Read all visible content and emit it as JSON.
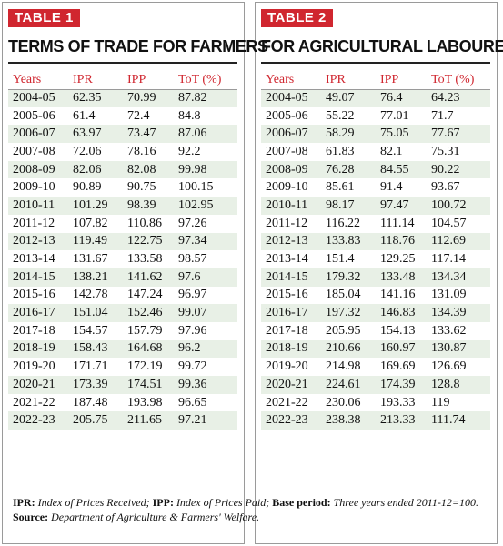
{
  "table1": {
    "tag": "TABLE 1",
    "title": "TERMS OF TRADE FOR FARMERS",
    "headers": [
      "Years",
      "IPR",
      "IPP",
      "ToT (%)"
    ],
    "rows": [
      [
        "2004-05",
        "62.35",
        "70.99",
        "87.82"
      ],
      [
        "2005-06",
        "61.4",
        "72.4",
        "84.8"
      ],
      [
        "2006-07",
        "63.97",
        "73.47",
        "87.06"
      ],
      [
        "2007-08",
        "72.06",
        "78.16",
        "92.2"
      ],
      [
        "2008-09",
        "82.06",
        "82.08",
        "99.98"
      ],
      [
        "2009-10",
        "90.89",
        "90.75",
        "100.15"
      ],
      [
        "2010-11",
        "101.29",
        "98.39",
        "102.95"
      ],
      [
        "2011-12",
        "107.82",
        "110.86",
        "97.26"
      ],
      [
        "2012-13",
        "119.49",
        "122.75",
        "97.34"
      ],
      [
        "2013-14",
        "131.67",
        "133.58",
        "98.57"
      ],
      [
        "2014-15",
        "138.21",
        "141.62",
        "97.6"
      ],
      [
        "2015-16",
        "142.78",
        "147.24",
        "96.97"
      ],
      [
        "2016-17",
        "151.04",
        "152.46",
        "99.07"
      ],
      [
        "2017-18",
        "154.57",
        "157.79",
        "97.96"
      ],
      [
        "2018-19",
        "158.43",
        "164.68",
        "96.2"
      ],
      [
        "2019-20",
        "171.71",
        "172.19",
        "99.72"
      ],
      [
        "2020-21",
        "173.39",
        "174.51",
        "99.36"
      ],
      [
        "2021-22",
        "187.48",
        "193.98",
        "96.65"
      ],
      [
        "2022-23",
        "205.75",
        "211.65",
        "97.21"
      ]
    ]
  },
  "table2": {
    "tag": "TABLE 2",
    "title": "FOR AGRICULTURAL LABOURERS",
    "headers": [
      "Years",
      "IPR",
      "IPP",
      "ToT (%)"
    ],
    "rows": [
      [
        "2004-05",
        "49.07",
        "76.4",
        "64.23"
      ],
      [
        "2005-06",
        "55.22",
        "77.01",
        "71.7"
      ],
      [
        "2006-07",
        "58.29",
        "75.05",
        "77.67"
      ],
      [
        "2007-08",
        "61.83",
        "82.1",
        "75.31"
      ],
      [
        "2008-09",
        "76.28",
        "84.55",
        "90.22"
      ],
      [
        "2009-10",
        "85.61",
        "91.4",
        "93.67"
      ],
      [
        "2010-11",
        "98.17",
        "97.47",
        "100.72"
      ],
      [
        "2011-12",
        "116.22",
        "111.14",
        "104.57"
      ],
      [
        "2012-13",
        "133.83",
        "118.76",
        "112.69"
      ],
      [
        "2013-14",
        "151.4",
        "129.25",
        "117.14"
      ],
      [
        "2014-15",
        "179.32",
        "133.48",
        "134.34"
      ],
      [
        "2015-16",
        "185.04",
        "141.16",
        "131.09"
      ],
      [
        "2016-17",
        "197.32",
        "146.83",
        "134.39"
      ],
      [
        "2017-18",
        "205.95",
        "154.13",
        "133.62"
      ],
      [
        "2018-19",
        "210.66",
        "160.97",
        "130.87"
      ],
      [
        "2019-20",
        "214.98",
        "169.69",
        "126.69"
      ],
      [
        "2020-21",
        "224.61",
        "174.39",
        "128.8"
      ],
      [
        "2021-22",
        "230.06",
        "193.33",
        "119"
      ],
      [
        "2022-23",
        "238.38",
        "213.33",
        "111.74"
      ]
    ]
  },
  "notes": {
    "ipr_key": "IPR:",
    "ipr_text": " Index of Prices Received; ",
    "ipp_key": "IPP:",
    "ipp_text": " Index of Prices Paid; ",
    "base_key": "Base period:",
    "base_text": " Three years ended 2011-12=100.",
    "source_key": "Source:",
    "source_text": " Department of Agriculture & Farmers' Welfare."
  }
}
